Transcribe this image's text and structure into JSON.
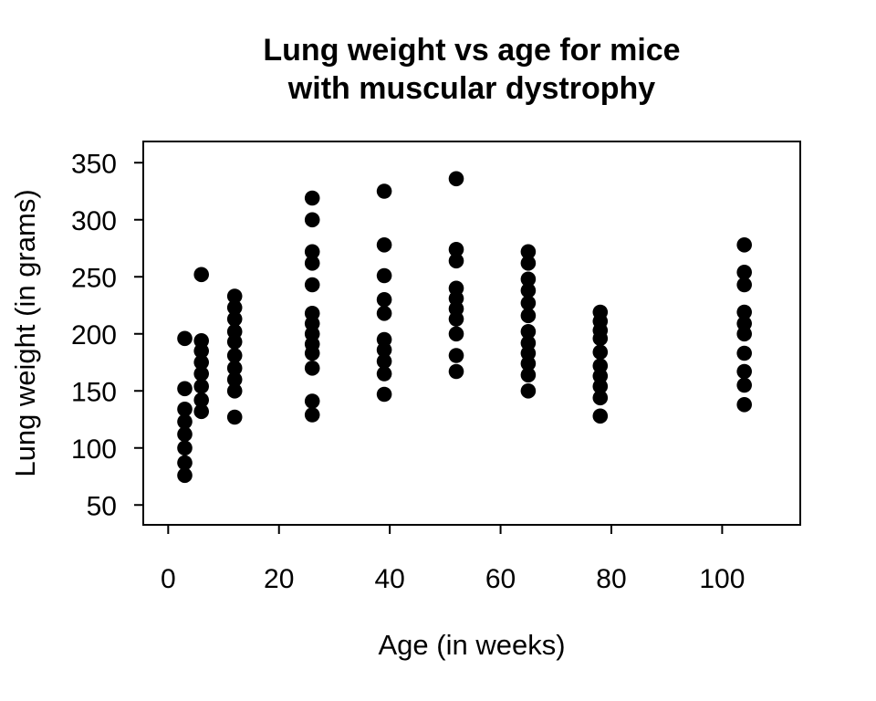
{
  "chart_data": {
    "type": "scatter",
    "title": "Lung weight vs age for mice with muscular dystrophy",
    "title_lines": [
      "Lung weight vs age for mice",
      "with muscular dystrophy"
    ],
    "xlabel": "Age (in weeks)",
    "ylabel": "Lung weight (in grams)",
    "x_ticks": [
      0,
      20,
      40,
      60,
      80,
      100
    ],
    "y_ticks": [
      50,
      100,
      150,
      200,
      250,
      300,
      350
    ],
    "xlim": [
      -4.5,
      114.1
    ],
    "ylim": [
      32.6,
      368.6
    ],
    "grid": false,
    "legend": "none",
    "marker": "filled-circle",
    "point_color": "#000000",
    "background_color": "#ffffff",
    "axis_color": "#000000",
    "groups": [
      {
        "age": 3,
        "lung_weights": [
          196,
          152,
          134,
          123,
          112,
          100,
          87,
          76
        ]
      },
      {
        "age": 6,
        "lung_weights": [
          252,
          194,
          185,
          175,
          165,
          154,
          142,
          132
        ]
      },
      {
        "age": 12,
        "lung_weights": [
          233,
          223,
          213,
          202,
          193,
          181,
          170,
          160,
          150,
          127
        ]
      },
      {
        "age": 26,
        "lung_weights": [
          319,
          300,
          272,
          262,
          243,
          218,
          209,
          200,
          191,
          183,
          170,
          141,
          129
        ]
      },
      {
        "age": 39,
        "lung_weights": [
          325,
          278,
          251,
          230,
          218,
          195,
          186,
          176,
          165,
          147
        ]
      },
      {
        "age": 52,
        "lung_weights": [
          336,
          274,
          264,
          240,
          231,
          222,
          213,
          200,
          181,
          167
        ]
      },
      {
        "age": 65,
        "lung_weights": [
          272,
          262,
          248,
          238,
          227,
          216,
          202,
          192,
          183,
          174,
          164,
          150
        ]
      },
      {
        "age": 78,
        "lung_weights": [
          219,
          211,
          203,
          196,
          184,
          172,
          163,
          154,
          144,
          128
        ]
      },
      {
        "age": 104,
        "lung_weights": [
          278,
          254,
          243,
          219,
          209,
          200,
          183,
          167,
          155,
          138
        ]
      }
    ]
  }
}
